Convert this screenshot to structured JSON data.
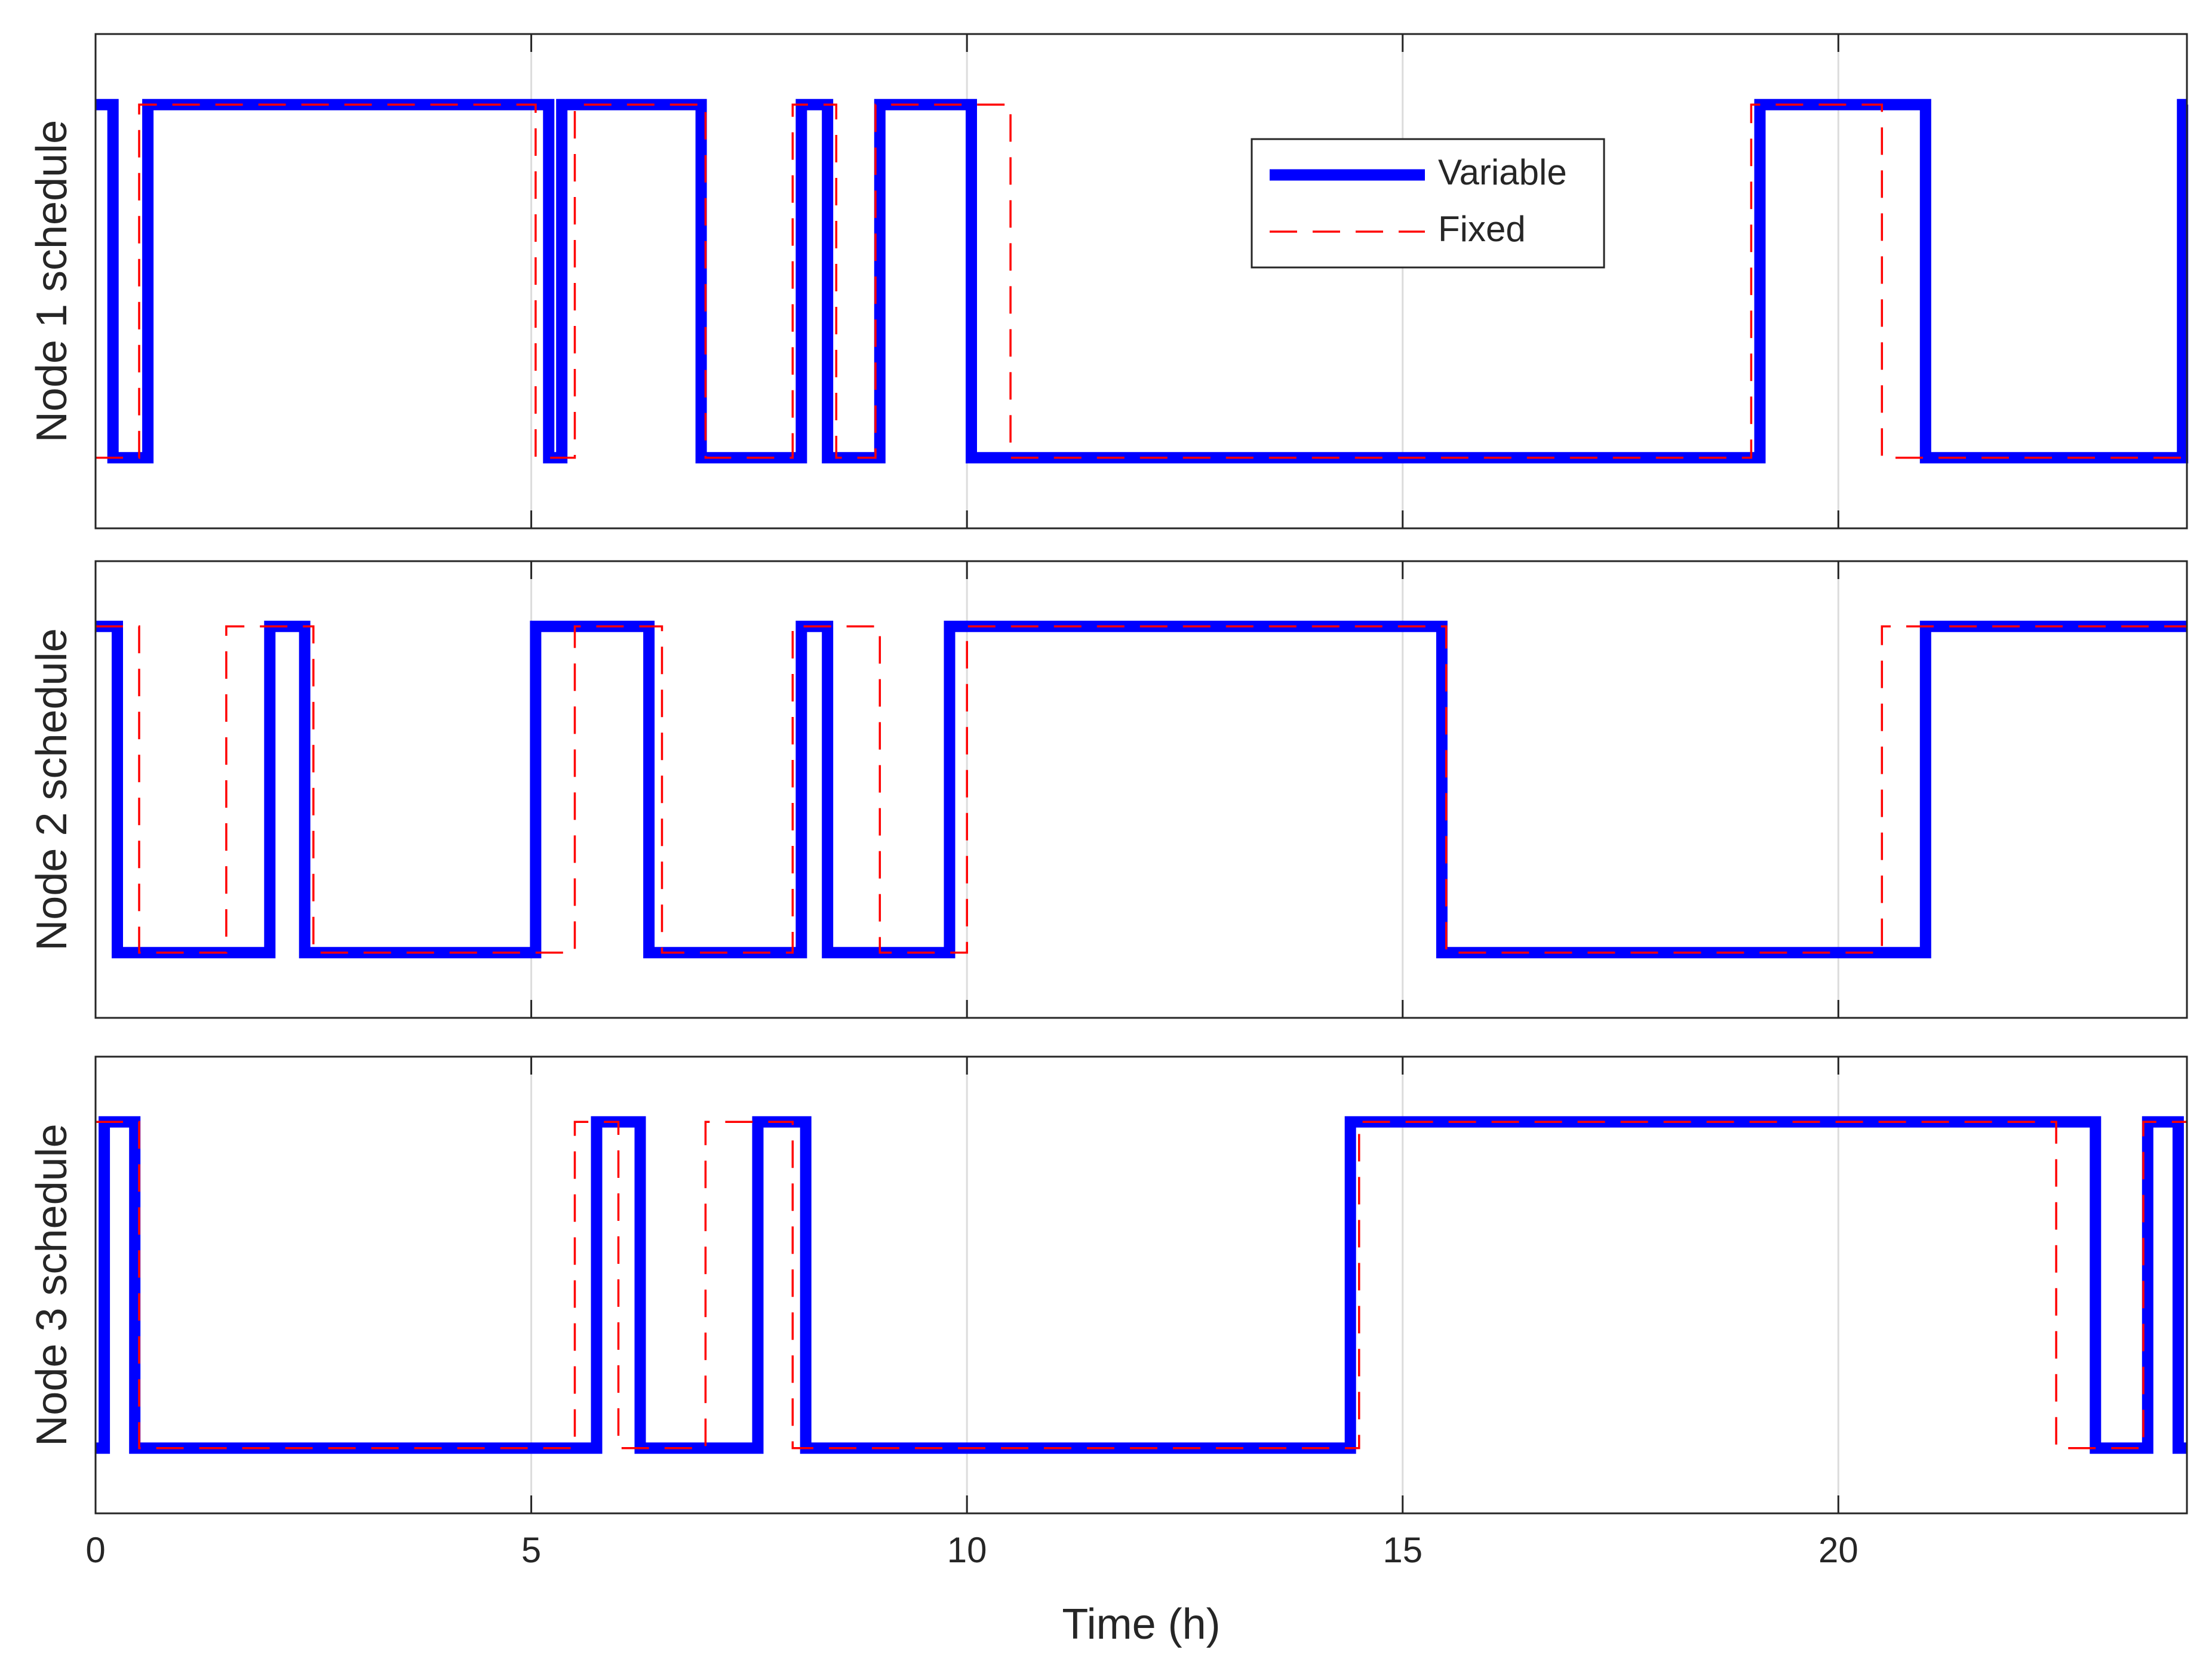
{
  "chart_data": {
    "type": "line",
    "step": true,
    "xlabel": "Time (h)",
    "xlim": [
      0,
      24
    ],
    "xticks": [
      0,
      5,
      10,
      15,
      20
    ],
    "grid": "vertical",
    "legend": {
      "position": "top-center",
      "entries": [
        "Variable",
        "Fixed"
      ]
    },
    "colors": {
      "Variable": "#0000ff",
      "Fixed": "#ff0000"
    },
    "subplots": [
      {
        "ylabel": "Node 1 schedule",
        "ylim": [
          -0.2,
          1.2
        ],
        "series": [
          {
            "name": "Variable",
            "style": "solid",
            "x": [
              0,
              0.2,
              0.6,
              5.2,
              5.35,
              6.95,
              8.1,
              8.4,
              9.0,
              10.05,
              19.1,
              21.0,
              23.95,
              24
            ],
            "y": [
              1,
              0,
              1,
              0,
              1,
              0,
              1,
              0,
              1,
              0,
              1,
              0,
              1,
              1
            ]
          },
          {
            "name": "Fixed",
            "style": "dashed",
            "x": [
              0,
              0.5,
              5.05,
              5.5,
              7.0,
              8.0,
              8.5,
              8.95,
              10.5,
              19.0,
              20.5,
              24
            ],
            "y": [
              0,
              1,
              0,
              1,
              0,
              1,
              0,
              1,
              0,
              1,
              0,
              0
            ]
          }
        ]
      },
      {
        "ylabel": "Node 2 schedule",
        "ylim": [
          -0.2,
          1.2
        ],
        "series": [
          {
            "name": "Variable",
            "style": "solid",
            "x": [
              0,
              0.25,
              2.0,
              2.4,
              5.05,
              6.35,
              8.1,
              8.4,
              9.8,
              15.45,
              21.0,
              24
            ],
            "y": [
              1,
              0,
              1,
              0,
              1,
              0,
              1,
              0,
              1,
              0,
              1,
              1
            ]
          },
          {
            "name": "Fixed",
            "style": "dashed",
            "x": [
              0,
              0.5,
              1.5,
              2.5,
              5.5,
              6.5,
              8.0,
              9.0,
              10.0,
              15.5,
              20.5,
              24
            ],
            "y": [
              1,
              0,
              1,
              0,
              1,
              0,
              1,
              0,
              1,
              0,
              1,
              1
            ]
          }
        ]
      },
      {
        "ylabel": "Node 3 schedule",
        "ylim": [
          -0.2,
          1.2
        ],
        "series": [
          {
            "name": "Variable",
            "style": "solid",
            "x": [
              0,
              0.1,
              0.45,
              5.75,
              6.25,
              7.6,
              8.15,
              14.4,
              22.95,
              23.55,
              23.9,
              24
            ],
            "y": [
              0,
              1,
              0,
              1,
              0,
              1,
              0,
              1,
              0,
              1,
              0,
              0
            ]
          },
          {
            "name": "Fixed",
            "style": "dashed",
            "x": [
              0,
              0.5,
              5.5,
              6.0,
              7.0,
              8.0,
              14.5,
              22.5,
              23.5,
              24
            ],
            "y": [
              1,
              0,
              1,
              0,
              1,
              0,
              1,
              0,
              1,
              1
            ]
          }
        ]
      }
    ]
  }
}
